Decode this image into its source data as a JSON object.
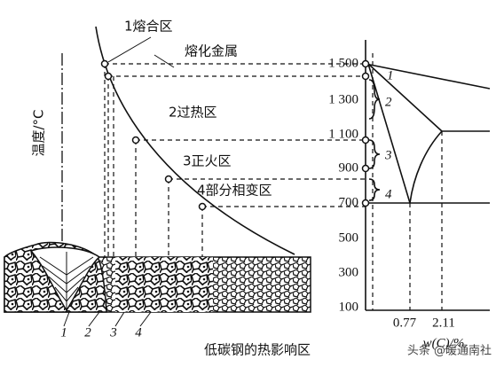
{
  "diagram": {
    "fusion_zone": "1熔合区",
    "molten_metal": "熔化金属",
    "overheat_zone": "2过热区",
    "normalizing_zone": "3正火区",
    "partial_zone": "4部分相变区",
    "y_axis_label": "温度/°C",
    "temperature_ticks": [
      "1 500",
      "1 300",
      "1 100",
      "900",
      "700",
      "500",
      "300",
      "100"
    ],
    "carbon_ticks": [
      "0.77",
      "2.11"
    ],
    "x_axis_label": "w(C)/%",
    "zone_numbers": [
      "1",
      "2",
      "3",
      "4"
    ],
    "phase_zone_numbers": [
      "1",
      "2",
      "3",
      "4"
    ],
    "caption": "低碳钢的热影响区"
  },
  "watermark": "头条 @暖通南社"
}
